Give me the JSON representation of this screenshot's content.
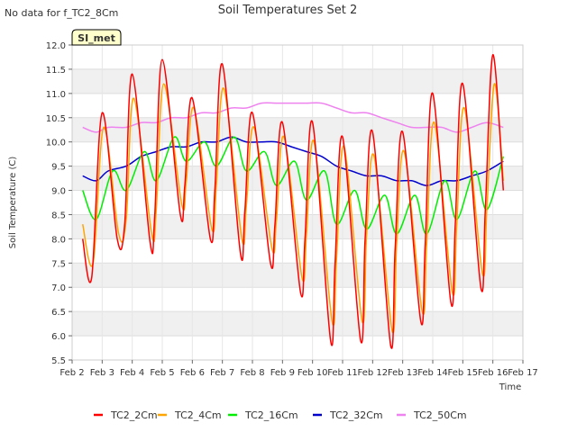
{
  "chart_data": {
    "type": "line",
    "title": "Soil Temperatures Set 2",
    "no_data_note": "No data for f_TC2_8Cm",
    "site_badge": "SI_met",
    "xlabel": "Time",
    "ylabel": "Soil Temperature (C)",
    "xlim": [
      2,
      17
    ],
    "ylim": [
      5.5,
      12.0
    ],
    "x_ticks": [
      2,
      3,
      4,
      5,
      6,
      7,
      8,
      9,
      10,
      11,
      12,
      13,
      14,
      15,
      16,
      17
    ],
    "x_tick_labels": [
      "Feb 2",
      "Feb 3",
      "Feb 4",
      "Feb 5",
      "Feb 6",
      "Feb 7",
      "Feb 8",
      "Feb 9",
      "Feb 10",
      "Feb 11",
      "Feb 12",
      "Feb 13",
      "Feb 14",
      "Feb 15",
      "Feb 16",
      "Feb 17"
    ],
    "y_ticks": [
      5.5,
      6.0,
      6.5,
      7.0,
      7.5,
      8.0,
      8.5,
      9.0,
      9.5,
      10.0,
      10.5,
      11.0,
      11.5,
      12.0
    ],
    "y_tick_labels": [
      "5.5",
      "6.0",
      "6.5",
      "7.0",
      "7.5",
      "8.0",
      "8.5",
      "9.0",
      "9.5",
      "10.0",
      "10.5",
      "11.0",
      "11.5",
      "12.0"
    ],
    "grid": true,
    "legend_position": "bottom",
    "series": [
      {
        "name": "TC2_2Cm",
        "color": "#ff0000",
        "x": [
          2.35,
          2.65,
          3.0,
          3.5,
          3.75,
          4.0,
          4.6,
          4.75,
          5.0,
          5.6,
          5.75,
          6.0,
          6.6,
          6.75,
          7.0,
          7.6,
          7.75,
          8.0,
          8.6,
          8.75,
          9.0,
          9.6,
          9.75,
          10.0,
          10.6,
          10.75,
          11.0,
          11.6,
          11.75,
          12.0,
          12.6,
          12.75,
          13.0,
          13.6,
          13.75,
          14.0,
          14.6,
          14.75,
          15.0,
          15.6,
          15.75,
          16.0,
          16.35
        ],
        "y": [
          8.0,
          7.2,
          10.6,
          8.0,
          8.3,
          11.4,
          7.9,
          8.5,
          11.7,
          8.5,
          9.1,
          10.9,
          8.0,
          9.0,
          11.6,
          7.7,
          8.6,
          10.6,
          7.5,
          8.3,
          10.4,
          6.9,
          8.0,
          10.4,
          5.9,
          7.5,
          10.1,
          5.9,
          8.0,
          10.2,
          5.8,
          7.8,
          10.2,
          6.3,
          7.9,
          11.0,
          6.7,
          8.3,
          11.2,
          7.0,
          8.6,
          11.8,
          9.0
        ]
      },
      {
        "name": "TC2_4Cm",
        "color": "#ffa500",
        "x": [
          2.35,
          2.7,
          3.05,
          3.55,
          3.8,
          4.05,
          4.65,
          4.8,
          5.05,
          5.65,
          5.8,
          6.05,
          6.65,
          6.8,
          7.05,
          7.65,
          7.8,
          8.05,
          8.65,
          8.8,
          9.05,
          9.65,
          9.8,
          10.05,
          10.65,
          10.8,
          11.05,
          11.65,
          11.8,
          12.05,
          12.65,
          12.8,
          13.05,
          13.65,
          13.8,
          14.05,
          14.65,
          14.8,
          15.05,
          15.65,
          15.8,
          16.05,
          16.35
        ],
        "y": [
          8.3,
          7.5,
          10.3,
          8.1,
          8.4,
          10.9,
          8.1,
          8.6,
          11.2,
          8.7,
          9.2,
          10.7,
          8.2,
          9.1,
          11.1,
          8.0,
          8.7,
          10.3,
          7.8,
          8.4,
          10.1,
          7.2,
          8.1,
          10.0,
          6.3,
          7.6,
          9.9,
          6.3,
          8.1,
          9.7,
          6.1,
          7.9,
          9.8,
          6.5,
          7.9,
          10.4,
          6.9,
          8.3,
          10.7,
          7.3,
          8.6,
          11.2,
          9.2
        ]
      },
      {
        "name": "TC2_16Cm",
        "color": "#00ee00",
        "x": [
          2.35,
          2.8,
          3.35,
          3.8,
          4.4,
          4.8,
          5.4,
          5.8,
          6.4,
          6.8,
          7.4,
          7.8,
          8.4,
          8.8,
          9.4,
          9.8,
          10.4,
          10.8,
          11.4,
          11.8,
          12.4,
          12.8,
          13.4,
          13.8,
          14.4,
          14.8,
          15.4,
          15.8,
          16.35
        ],
        "y": [
          9.0,
          8.4,
          9.4,
          9.0,
          9.8,
          9.2,
          10.1,
          9.6,
          10.0,
          9.5,
          10.1,
          9.4,
          9.8,
          9.1,
          9.6,
          8.8,
          9.4,
          8.3,
          9.0,
          8.2,
          8.9,
          8.1,
          8.9,
          8.1,
          9.2,
          8.4,
          9.4,
          8.6,
          9.7
        ]
      },
      {
        "name": "TC2_32Cm",
        "color": "#0000cc",
        "x": [
          2.35,
          2.8,
          3.2,
          3.8,
          4.3,
          4.8,
          5.3,
          5.8,
          6.3,
          6.8,
          7.3,
          7.8,
          8.3,
          8.8,
          9.3,
          9.8,
          10.3,
          10.8,
          11.3,
          11.8,
          12.3,
          12.8,
          13.3,
          13.8,
          14.3,
          14.8,
          15.3,
          15.8,
          16.35
        ],
        "y": [
          9.3,
          9.2,
          9.4,
          9.5,
          9.7,
          9.8,
          9.9,
          9.9,
          10.0,
          10.0,
          10.1,
          10.0,
          10.0,
          10.0,
          9.9,
          9.8,
          9.7,
          9.5,
          9.4,
          9.3,
          9.3,
          9.2,
          9.2,
          9.1,
          9.2,
          9.2,
          9.3,
          9.4,
          9.6
        ]
      },
      {
        "name": "TC2_50Cm",
        "color": "#ee82ee",
        "x": [
          2.35,
          2.8,
          3.2,
          3.8,
          4.3,
          4.8,
          5.3,
          5.8,
          6.3,
          6.8,
          7.3,
          7.8,
          8.3,
          8.8,
          9.3,
          9.8,
          10.3,
          10.8,
          11.3,
          11.8,
          12.3,
          12.8,
          13.3,
          13.8,
          14.3,
          14.8,
          15.3,
          15.8,
          16.35
        ],
        "y": [
          10.3,
          10.2,
          10.3,
          10.3,
          10.4,
          10.4,
          10.5,
          10.5,
          10.6,
          10.6,
          10.7,
          10.7,
          10.8,
          10.8,
          10.8,
          10.8,
          10.8,
          10.7,
          10.6,
          10.6,
          10.5,
          10.4,
          10.3,
          10.3,
          10.3,
          10.2,
          10.3,
          10.4,
          10.3
        ]
      }
    ]
  }
}
